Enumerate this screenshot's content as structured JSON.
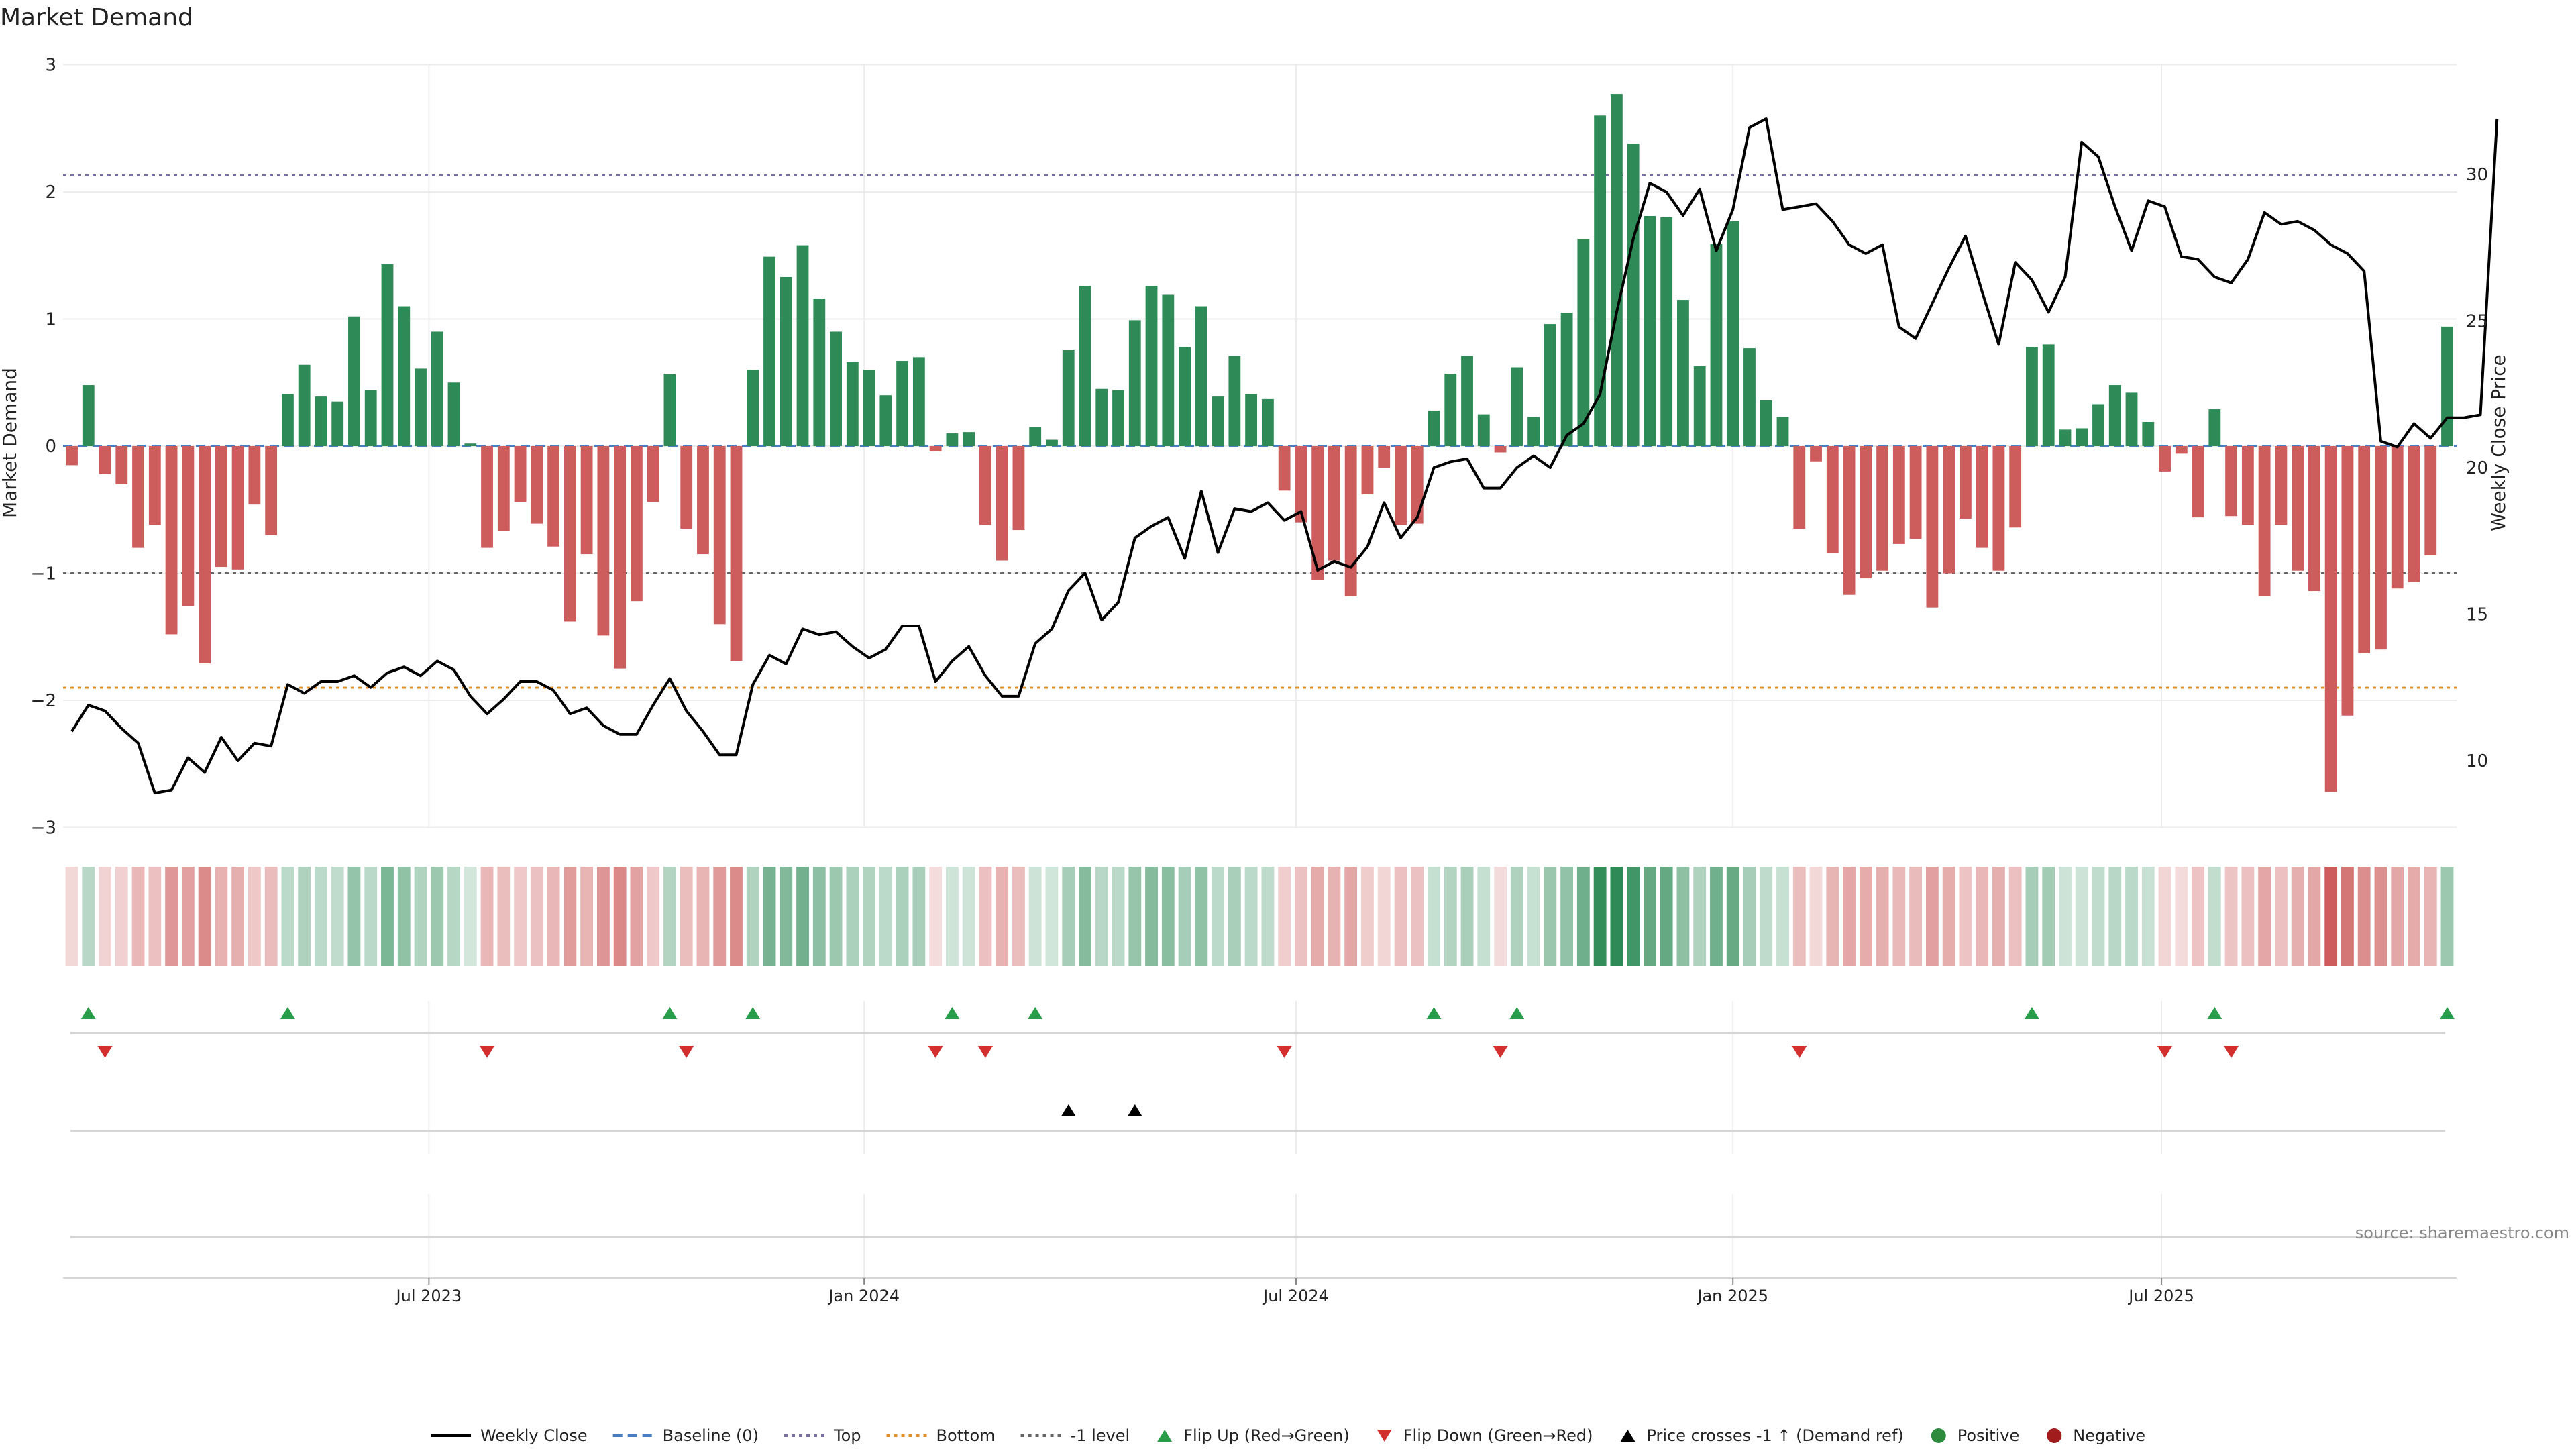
{
  "chart_data": {
    "type": "bar",
    "title": "Market Demand",
    "ylabel": "Market Demand",
    "y2label": "Weekly Close Price",
    "source": "source: sharemaestro.com",
    "ylim": [
      -3,
      3
    ],
    "y2lim": [
      7.8,
      33.8
    ],
    "yticks": [
      3,
      2,
      1,
      0,
      -1,
      -2,
      -3
    ],
    "yticklabels": [
      "3",
      "2",
      "1",
      "0",
      "−1",
      "−2",
      "−3"
    ],
    "y2ticks": [
      30,
      25,
      20,
      15,
      10
    ],
    "xticklabels": [
      {
        "label": "Jul 2023",
        "index": 21.5
      },
      {
        "label": "Jan 2024",
        "index": 47.7
      },
      {
        "label": "Jul 2024",
        "index": 73.7
      },
      {
        "label": "Jan 2025",
        "index": 100
      },
      {
        "label": "Jul 2025",
        "index": 125.8
      }
    ],
    "levels": {
      "top": 2.13,
      "bottom": -1.9,
      "minus_one": -1.0
    },
    "demand": [
      -0.15,
      0.48,
      -0.22,
      -0.3,
      -0.8,
      -0.62,
      -1.48,
      -1.26,
      -1.71,
      -0.95,
      -0.97,
      -0.46,
      -0.7,
      0.41,
      0.64,
      0.39,
      0.35,
      1.02,
      0.44,
      1.43,
      1.1,
      0.61,
      0.9,
      0.5,
      0.02,
      -0.8,
      -0.67,
      -0.44,
      -0.61,
      -0.79,
      -1.38,
      -0.85,
      -1.49,
      -1.75,
      -1.22,
      -0.44,
      0.57,
      -0.65,
      -0.85,
      -1.4,
      -1.69,
      0.6,
      1.49,
      1.33,
      1.58,
      1.16,
      0.9,
      0.66,
      0.6,
      0.4,
      0.67,
      0.7,
      -0.04,
      0.1,
      0.11,
      -0.62,
      -0.9,
      -0.66,
      0.15,
      0.05,
      0.76,
      1.26,
      0.45,
      0.44,
      0.99,
      1.26,
      1.19,
      0.78,
      1.1,
      0.39,
      0.71,
      0.41,
      0.37,
      -0.35,
      -0.6,
      -1.05,
      -0.9,
      -1.18,
      -0.38,
      -0.17,
      -0.62,
      -0.61,
      0.28,
      0.57,
      0.71,
      0.25,
      -0.05,
      0.62,
      0.23,
      0.96,
      1.05,
      1.63,
      2.6,
      2.77,
      2.38,
      1.81,
      1.8,
      1.15,
      0.63,
      1.59,
      1.77,
      0.77,
      0.36,
      0.23,
      -0.65,
      -0.12,
      -0.84,
      -1.17,
      -1.04,
      -0.98,
      -0.77,
      -0.73,
      -1.27,
      -1.0,
      -0.57,
      -0.8,
      -0.98,
      -0.64,
      0.78,
      0.8,
      0.13,
      0.14,
      0.33,
      0.48,
      0.42,
      0.19,
      -0.2,
      -0.06,
      -0.56,
      0.29,
      -0.55,
      -0.62,
      -1.18,
      -0.62,
      -0.98,
      -1.14,
      -2.72,
      -2.12,
      -1.63,
      -1.6,
      -1.12,
      -1.07,
      -0.86,
      0.94
    ],
    "close": [
      11.0,
      11.9,
      11.7,
      11.1,
      10.6,
      8.9,
      9.0,
      10.1,
      9.6,
      10.8,
      10.0,
      10.6,
      10.5,
      12.6,
      12.3,
      12.7,
      12.7,
      12.9,
      12.5,
      13.0,
      13.2,
      12.9,
      13.4,
      13.1,
      12.2,
      11.6,
      12.1,
      12.7,
      12.7,
      12.4,
      11.6,
      11.8,
      11.2,
      10.9,
      10.9,
      11.9,
      12.8,
      11.7,
      11.0,
      10.2,
      10.2,
      12.6,
      13.6,
      13.3,
      14.5,
      14.3,
      14.4,
      13.9,
      13.5,
      13.8,
      14.6,
      14.6,
      12.7,
      13.4,
      13.9,
      12.9,
      12.2,
      12.2,
      14.0,
      14.5,
      15.8,
      16.4,
      14.8,
      15.4,
      17.6,
      18.0,
      18.3,
      16.9,
      19.2,
      17.1,
      18.6,
      18.5,
      18.8,
      18.2,
      18.5,
      16.5,
      16.8,
      16.6,
      17.3,
      18.8,
      17.6,
      18.3,
      20.0,
      20.2,
      20.3,
      19.3,
      19.3,
      20.0,
      20.4,
      20.0,
      21.1,
      21.5,
      22.5,
      25.3,
      27.8,
      29.7,
      29.4,
      28.6,
      29.5,
      27.4,
      28.8,
      31.6,
      31.9,
      28.8,
      28.9,
      29.0,
      28.4,
      27.6,
      27.3,
      27.6,
      24.8,
      24.4,
      25.6,
      26.8,
      27.9,
      26.0,
      24.2,
      27.0,
      26.4,
      25.3,
      26.5,
      31.1,
      30.6,
      28.9,
      27.4,
      29.1,
      28.9,
      27.2,
      27.1,
      26.5,
      26.3,
      27.1,
      28.7,
      28.3,
      28.4,
      28.1,
      27.6,
      27.3,
      26.7,
      20.9,
      20.7,
      21.5,
      21.0,
      21.7,
      21.7,
      21.8,
      31.9
    ],
    "flip_up_indices": [
      1,
      13,
      36,
      41,
      53,
      58,
      82,
      87,
      118,
      129,
      143
    ],
    "flip_down_indices": [
      2,
      25,
      37,
      52,
      55,
      73,
      86,
      104,
      126,
      130
    ],
    "price_cross_indices": [
      60,
      64
    ],
    "legend": [
      {
        "label": "Weekly Close",
        "style": "line-solid",
        "color": "#000000"
      },
      {
        "label": "Baseline (0)",
        "style": "line-dashed",
        "color": "#4a7ec0"
      },
      {
        "label": "Top",
        "style": "line-dotted",
        "color": "#7a6fa0"
      },
      {
        "label": "Bottom",
        "style": "line-dotted",
        "color": "#e0902a"
      },
      {
        "label": "-1 level",
        "style": "line-dotted",
        "color": "#666666"
      },
      {
        "label": "Flip Up (Red→Green)",
        "style": "triangle-up",
        "color": "#2a9d4b"
      },
      {
        "label": "Flip Down (Green→Red)",
        "style": "triangle-down",
        "color": "#d32f2f"
      },
      {
        "label": "Price crosses -1 ↑ (Demand ref)",
        "style": "triangle-up",
        "color": "#000000"
      },
      {
        "label": "Positive",
        "style": "dot",
        "color": "#2e8b3e"
      },
      {
        "label": "Negative",
        "style": "dot",
        "color": "#a11d1d"
      }
    ],
    "colors": {
      "positive": "#2e8b57",
      "negative": "#cd5c5c",
      "close": "#000000",
      "flip_up": "#2a9d4b",
      "flip_down": "#d32f2f",
      "top_line": "#7a6fa0",
      "bottom_line": "#e0902a",
      "minus_one_line": "#666666"
    }
  }
}
